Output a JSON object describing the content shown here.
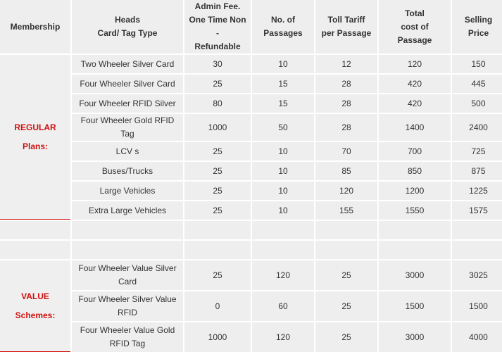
{
  "headers": {
    "membership": "Membership",
    "heads": [
      "Heads",
      "Card/ Tag Type"
    ],
    "admin": [
      "Admin Fee.",
      "One Time Non -",
      "Refundable"
    ],
    "passages": [
      "No. of",
      "Passages"
    ],
    "toll": [
      "Toll Tariff",
      "per Passage"
    ],
    "total": [
      "Total",
      "cost of",
      "Passage"
    ],
    "selling": [
      "Selling",
      "Price"
    ]
  },
  "regular": {
    "label": [
      "REGULAR",
      "Plans:"
    ],
    "rows": [
      {
        "type": "Two Wheeler Silver Card",
        "admin": "30",
        "passages": "10",
        "toll": "12",
        "total": "120",
        "price": "150"
      },
      {
        "type": "Four Wheeler Silver Card",
        "admin": "25",
        "passages": "15",
        "toll": "28",
        "total": "420",
        "price": "445"
      },
      {
        "type": "Four Wheeler RFID Silver",
        "admin": "80",
        "passages": "15",
        "toll": "28",
        "total": "420",
        "price": "500"
      },
      {
        "type": "Four Wheeler Gold RFID Tag",
        "admin": "1000",
        "passages": "50",
        "toll": "28",
        "total": "1400",
        "price": "2400"
      },
      {
        "type": "LCV s",
        "admin": "25",
        "passages": "10",
        "toll": "70",
        "total": "700",
        "price": "725"
      },
      {
        "type": "Buses/Trucks",
        "admin": "25",
        "passages": "10",
        "toll": "85",
        "total": "850",
        "price": "875"
      },
      {
        "type": "Large Vehicles",
        "admin": "25",
        "passages": "10",
        "toll": "120",
        "total": "1200",
        "price": "1225"
      },
      {
        "type": "Extra Large Vehicles",
        "admin": "25",
        "passages": "10",
        "toll": "155",
        "total": "1550",
        "price": "1575"
      }
    ]
  },
  "value": {
    "label": [
      "VALUE",
      "Schemes:"
    ],
    "rows": [
      {
        "type": "Four Wheeler Value Silver Card",
        "admin": "25",
        "passages": "120",
        "toll": "25",
        "total": "3000",
        "price": "3025"
      },
      {
        "type": "Four Wheeler Silver Value RFID",
        "admin": "0",
        "passages": "60",
        "toll": "25",
        "total": "1500",
        "price": "1500"
      },
      {
        "type": "Four Wheeler Value  Gold RFID Tag",
        "admin": "1000",
        "passages": "120",
        "toll": "25",
        "total": "3000",
        "price": "4000"
      }
    ]
  },
  "colors": {
    "accent": "#d01010",
    "cell_bg": "#eeeeee",
    "text": "#333333"
  }
}
